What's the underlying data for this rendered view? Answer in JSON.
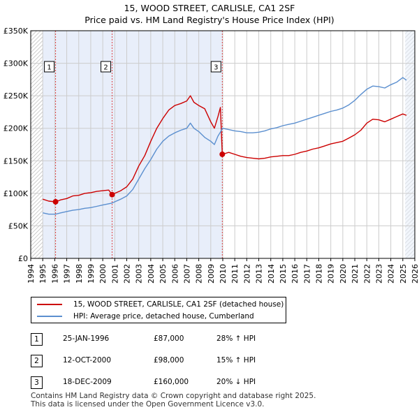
{
  "title_line1": "15, WOOD STREET, CARLISLE, CA1 2SF",
  "title_line2": "Price paid vs. HM Land Registry's House Price Index (HPI)",
  "legend": {
    "property_label": "15, WOOD STREET, CARLISLE, CA1 2SF (detached house)",
    "hpi_label": "HPI: Average price, detached house, Cumberland"
  },
  "colors": {
    "property": "#cc0000",
    "hpi": "#5b8fcf",
    "shade": "#e8eefa",
    "marker_line": "#dd4444",
    "grid": "#cccccc"
  },
  "sales": [
    {
      "num": "1",
      "date": "25-JAN-1996",
      "price": "£87,000",
      "hpi": "28% ↑ HPI"
    },
    {
      "num": "2",
      "date": "12-OCT-2000",
      "price": "£98,000",
      "hpi": "15% ↑ HPI"
    },
    {
      "num": "3",
      "date": "18-DEC-2009",
      "price": "£160,000",
      "hpi": "20% ↓ HPI"
    }
  ],
  "footer_line1": "Contains HM Land Registry data © Crown copyright and database right 2025.",
  "footer_line2": "This data is licensed under the Open Government Licence v3.0.",
  "chart_data": {
    "type": "line",
    "xlim": [
      1994,
      2026
    ],
    "ylim": [
      0,
      350000
    ],
    "yticks": [
      0,
      50000,
      100000,
      150000,
      200000,
      250000,
      300000,
      350000
    ],
    "ytick_labels": [
      "£0",
      "£50K",
      "£100K",
      "£150K",
      "£200K",
      "£250K",
      "£300K",
      "£350K"
    ],
    "xticks": [
      1994,
      1995,
      1996,
      1997,
      1998,
      1999,
      2000,
      2001,
      2002,
      2003,
      2004,
      2005,
      2006,
      2007,
      2008,
      2009,
      2010,
      2011,
      2012,
      2013,
      2014,
      2015,
      2016,
      2017,
      2018,
      2019,
      2020,
      2021,
      2022,
      2023,
      2024,
      2025,
      2026
    ],
    "shaded_ranges": [
      [
        1995.0,
        2009.96
      ],
      [
        2025.2,
        2026
      ]
    ],
    "hatched_ranges": [
      [
        1994,
        1995.0
      ],
      [
        2025.2,
        2026
      ]
    ],
    "sale_markers": [
      {
        "label": "1",
        "x": 1996.07,
        "y": 87000
      },
      {
        "label": "2",
        "x": 2000.78,
        "y": 98000
      },
      {
        "label": "3",
        "x": 2009.96,
        "y": 160000
      }
    ],
    "series": [
      {
        "name": "15, WOOD STREET, CARLISLE, CA1 2SF (detached house)",
        "x": [
          1995.0,
          1995.5,
          1996.07,
          1996.5,
          1997.0,
          1997.5,
          1998.0,
          1998.5,
          1999.0,
          1999.5,
          2000.0,
          2000.5,
          2000.78,
          2001.0,
          2001.5,
          2002.0,
          2002.5,
          2003.0,
          2003.5,
          2004.0,
          2004.5,
          2005.0,
          2005.5,
          2006.0,
          2006.5,
          2007.0,
          2007.3,
          2007.6,
          2008.0,
          2008.5,
          2009.0,
          2009.3,
          2009.6,
          2009.8,
          2009.96,
          2010.5,
          2011.0,
          2011.5,
          2012.0,
          2012.5,
          2013.0,
          2013.5,
          2014.0,
          2014.5,
          2015.0,
          2015.5,
          2016.0,
          2016.5,
          2017.0,
          2017.5,
          2018.0,
          2018.5,
          2019.0,
          2019.5,
          2020.0,
          2020.5,
          2021.0,
          2021.5,
          2022.0,
          2022.5,
          2023.0,
          2023.5,
          2024.0,
          2024.5,
          2025.0,
          2025.3
        ],
        "y": [
          91000,
          88000,
          87000,
          90000,
          92000,
          96000,
          97000,
          100000,
          101000,
          103000,
          104000,
          105000,
          98000,
          100000,
          104000,
          110000,
          122000,
          142000,
          158000,
          180000,
          200000,
          215000,
          228000,
          235000,
          238000,
          242000,
          250000,
          240000,
          235000,
          230000,
          210000,
          200000,
          218000,
          232000,
          160000,
          163000,
          160000,
          157000,
          155000,
          154000,
          153000,
          154000,
          156000,
          157000,
          158000,
          158000,
          160000,
          163000,
          165000,
          168000,
          170000,
          173000,
          176000,
          178000,
          180000,
          185000,
          190000,
          197000,
          208000,
          214000,
          213000,
          210000,
          214000,
          218000,
          222000,
          220000
        ]
      },
      {
        "name": "HPI: Average price, detached house, Cumberland",
        "x": [
          1995.0,
          1995.5,
          1996.07,
          1996.5,
          1997.0,
          1997.5,
          1998.0,
          1998.5,
          1999.0,
          1999.5,
          2000.0,
          2000.5,
          2000.78,
          2001.0,
          2001.5,
          2002.0,
          2002.5,
          2003.0,
          2003.5,
          2004.0,
          2004.5,
          2005.0,
          2005.5,
          2006.0,
          2006.5,
          2007.0,
          2007.3,
          2007.6,
          2008.0,
          2008.5,
          2009.0,
          2009.3,
          2009.6,
          2009.8,
          2009.96,
          2010.5,
          2011.0,
          2011.5,
          2012.0,
          2012.5,
          2013.0,
          2013.5,
          2014.0,
          2014.5,
          2015.0,
          2015.5,
          2016.0,
          2016.5,
          2017.0,
          2017.5,
          2018.0,
          2018.5,
          2019.0,
          2019.5,
          2020.0,
          2020.5,
          2021.0,
          2021.5,
          2022.0,
          2022.5,
          2023.0,
          2023.5,
          2024.0,
          2024.5,
          2025.0,
          2025.3
        ],
        "y": [
          70000,
          68000,
          68000,
          70000,
          72000,
          74000,
          75000,
          77000,
          78000,
          80000,
          82000,
          84000,
          85000,
          87000,
          91000,
          96000,
          106000,
          122000,
          138000,
          152000,
          168000,
          180000,
          188000,
          193000,
          197000,
          200000,
          208000,
          200000,
          195000,
          186000,
          180000,
          175000,
          188000,
          194000,
          200000,
          198000,
          196000,
          195000,
          193000,
          193000,
          194000,
          196000,
          199000,
          201000,
          204000,
          206000,
          208000,
          211000,
          214000,
          217000,
          220000,
          223000,
          226000,
          228000,
          231000,
          236000,
          243000,
          252000,
          260000,
          265000,
          264000,
          262000,
          267000,
          271000,
          278000,
          274000
        ]
      }
    ]
  }
}
